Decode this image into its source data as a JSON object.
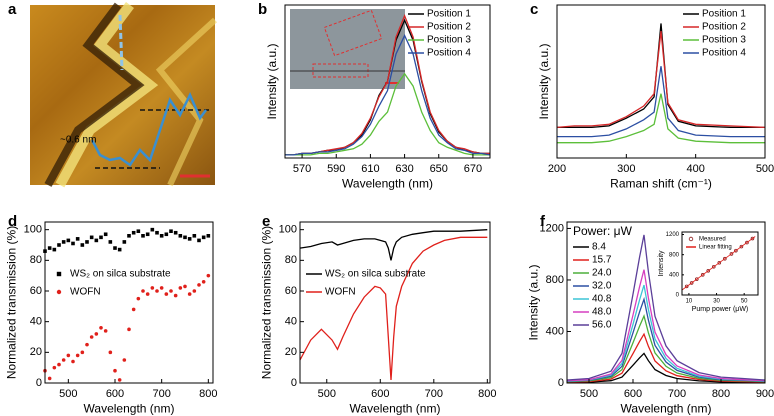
{
  "chart_data": [
    {
      "type": "image",
      "label": "a",
      "annotation": "~0.6 nm"
    },
    {
      "type": "line",
      "label": "b",
      "xlabel": "Wavelength (nm)",
      "ylabel": "Intensity (a.u.)",
      "xlim": [
        560,
        680
      ],
      "xticks": [
        570,
        590,
        610,
        630,
        650,
        670
      ],
      "ylim": [
        0,
        1
      ],
      "legend": "upper right",
      "x": [
        560,
        565,
        570,
        575,
        580,
        585,
        590,
        595,
        600,
        605,
        610,
        615,
        620,
        625,
        630,
        635,
        640,
        645,
        650,
        655,
        660,
        665,
        670,
        675,
        680
      ],
      "series": [
        {
          "name": "Position 1",
          "color": "#000000",
          "values": [
            0.02,
            0.02,
            0.03,
            0.03,
            0.04,
            0.05,
            0.05,
            0.07,
            0.1,
            0.15,
            0.25,
            0.41,
            0.5,
            0.77,
            0.9,
            0.77,
            0.5,
            0.29,
            0.17,
            0.11,
            0.07,
            0.05,
            0.04,
            0.03,
            0.03
          ]
        },
        {
          "name": "Position 2",
          "color": "#d62728",
          "values": [
            0.02,
            0.02,
            0.03,
            0.03,
            0.04,
            0.05,
            0.06,
            0.07,
            0.1,
            0.16,
            0.26,
            0.4,
            0.5,
            0.79,
            0.93,
            0.79,
            0.51,
            0.3,
            0.18,
            0.11,
            0.07,
            0.06,
            0.04,
            0.03,
            0.03
          ]
        },
        {
          "name": "Position 3",
          "color": "#5cbf3a",
          "values": [
            0.02,
            0.02,
            0.02,
            0.02,
            0.03,
            0.03,
            0.04,
            0.05,
            0.06,
            0.09,
            0.15,
            0.24,
            0.3,
            0.47,
            0.55,
            0.47,
            0.3,
            0.18,
            0.1,
            0.07,
            0.05,
            0.03,
            0.02,
            0.02,
            0.02
          ]
        },
        {
          "name": "Position 4",
          "color": "#2c4fa3",
          "values": [
            0.02,
            0.02,
            0.03,
            0.03,
            0.04,
            0.04,
            0.05,
            0.06,
            0.09,
            0.14,
            0.22,
            0.34,
            0.44,
            0.68,
            0.8,
            0.68,
            0.44,
            0.26,
            0.15,
            0.1,
            0.06,
            0.05,
            0.03,
            0.03,
            0.02
          ]
        }
      ]
    },
    {
      "type": "line",
      "label": "c",
      "xlabel": "Raman shift (cm⁻¹)",
      "ylabel": "Intensity (a.u.)",
      "xlim": [
        200,
        500
      ],
      "xticks": [
        200,
        300,
        400,
        500
      ],
      "ylim": [
        0,
        1
      ],
      "legend": "upper right",
      "x": [
        200,
        225,
        250,
        275,
        300,
        325,
        340,
        350,
        360,
        375,
        400,
        450,
        500
      ],
      "series": [
        {
          "name": "Position 1",
          "color": "#000000",
          "values": [
            0.2,
            0.2,
            0.2,
            0.21,
            0.26,
            0.32,
            0.4,
            0.88,
            0.35,
            0.24,
            0.21,
            0.2,
            0.2
          ]
        },
        {
          "name": "Position 2",
          "color": "#d62728",
          "values": [
            0.2,
            0.21,
            0.21,
            0.22,
            0.27,
            0.34,
            0.42,
            0.83,
            0.36,
            0.25,
            0.22,
            0.21,
            0.2
          ]
        },
        {
          "name": "Position 3",
          "color": "#5cbf3a",
          "values": [
            0.1,
            0.1,
            0.1,
            0.11,
            0.14,
            0.18,
            0.22,
            0.42,
            0.19,
            0.13,
            0.11,
            0.1,
            0.1
          ]
        },
        {
          "name": "Position 4",
          "color": "#2c4fa3",
          "values": [
            0.14,
            0.14,
            0.14,
            0.15,
            0.19,
            0.25,
            0.3,
            0.6,
            0.26,
            0.18,
            0.15,
            0.14,
            0.14
          ]
        }
      ]
    },
    {
      "type": "scatter",
      "label": "d",
      "xlabel": "Wavelength (nm)",
      "ylabel": "Normalized transmission (%)",
      "xlim": [
        450,
        810
      ],
      "xticks": [
        500,
        600,
        700,
        800
      ],
      "ylim": [
        0,
        105
      ],
      "yticks": [
        0,
        20,
        40,
        60,
        80,
        100
      ],
      "legend": "center left",
      "x": [
        450,
        460,
        470,
        480,
        490,
        500,
        510,
        520,
        530,
        540,
        550,
        560,
        570,
        580,
        590,
        600,
        610,
        620,
        630,
        640,
        650,
        660,
        670,
        680,
        690,
        700,
        710,
        720,
        730,
        740,
        750,
        760,
        770,
        780,
        790,
        800
      ],
      "series": [
        {
          "name": "WS₂ on silca substrate",
          "color": "#000000",
          "marker": "square",
          "values": [
            86,
            88,
            87,
            90,
            92,
            93,
            91,
            94,
            90,
            92,
            95,
            93,
            95,
            97,
            92,
            88,
            87,
            92,
            96,
            98,
            99,
            96,
            97,
            100,
            98,
            96,
            97,
            99,
            98,
            96,
            95,
            94,
            96,
            93,
            95,
            96
          ]
        },
        {
          "name": "WOFN",
          "color": "#e0201b",
          "marker": "circle",
          "values": [
            8,
            3,
            10,
            12,
            15,
            18,
            14,
            18,
            20,
            25,
            30,
            32,
            36,
            34,
            20,
            8,
            2,
            15,
            35,
            48,
            55,
            60,
            58,
            62,
            60,
            62,
            58,
            60,
            57,
            62,
            63,
            58,
            60,
            64,
            66,
            70
          ]
        }
      ]
    },
    {
      "type": "line",
      "label": "e",
      "xlabel": "Wavelength (nm)",
      "ylabel": "Normalized transmission (%)",
      "xlim": [
        450,
        805
      ],
      "xticks": [
        500,
        600,
        700,
        800
      ],
      "ylim": [
        0,
        105
      ],
      "yticks": [
        0,
        20,
        40,
        60,
        80,
        100
      ],
      "legend": "center left",
      "x": [
        450,
        470,
        490,
        510,
        520,
        530,
        550,
        570,
        590,
        600,
        610,
        615,
        620,
        625,
        630,
        640,
        660,
        680,
        700,
        720,
        750,
        800
      ],
      "series": [
        {
          "name": "WS₂ on silca substrate",
          "color": "#000000",
          "values": [
            88,
            89,
            91,
            92,
            90,
            91,
            93,
            94,
            94,
            93,
            92,
            88,
            80,
            88,
            92,
            95,
            97,
            98,
            99,
            99,
            99,
            100
          ]
        },
        {
          "name": "WOFN",
          "color": "#e0201b",
          "values": [
            15,
            28,
            35,
            28,
            22,
            30,
            45,
            56,
            63,
            62,
            58,
            30,
            2,
            30,
            50,
            63,
            78,
            86,
            90,
            93,
            95,
            95
          ]
        }
      ]
    },
    {
      "type": "line",
      "label": "f",
      "xlabel": "Wavelength (nm)",
      "ylabel": "Intensity (a.u.)",
      "xlim": [
        450,
        900
      ],
      "xticks": [
        500,
        600,
        700,
        800,
        900
      ],
      "ylim": [
        0,
        1250
      ],
      "yticks": [
        0,
        400,
        800,
        1200
      ],
      "legend": "upper left",
      "legend_title": "Power: μW",
      "x": [
        450,
        500,
        550,
        575,
        600,
        615,
        625,
        635,
        650,
        675,
        700,
        750,
        800,
        850,
        900
      ],
      "series": [
        {
          "name": "8.4",
          "color": "#000000",
          "values": [
            5,
            7,
            18,
            46,
            138,
            196,
            230,
            173,
            104,
            58,
            35,
            16,
            9,
            7,
            5
          ]
        },
        {
          "name": "15.7",
          "color": "#e0201b",
          "values": [
            8,
            11,
            30,
            76,
            228,
            323,
            380,
            285,
            171,
            95,
            57,
            27,
            15,
            11,
            8
          ]
        },
        {
          "name": "24.0",
          "color": "#4caf3a",
          "values": [
            10,
            16,
            42,
            104,
            312,
            442,
            520,
            390,
            234,
            130,
            78,
            36,
            21,
            16,
            10
          ]
        },
        {
          "name": "32.0",
          "color": "#2c4fa3",
          "values": [
            13,
            20,
            52,
            130,
            390,
            553,
            650,
            488,
            293,
            163,
            98,
            46,
            26,
            20,
            13
          ]
        },
        {
          "name": "40.8",
          "color": "#3cc4d6",
          "values": [
            15,
            23,
            61,
            152,
            456,
            646,
            760,
            570,
            342,
            190,
            114,
            53,
            30,
            23,
            15
          ]
        },
        {
          "name": "48.0",
          "color": "#d63fc0",
          "values": [
            18,
            26,
            70,
            176,
            528,
            748,
            880,
            660,
            396,
            220,
            132,
            62,
            35,
            26,
            18
          ]
        },
        {
          "name": "56.0",
          "color": "#5b3f99",
          "values": [
            23,
            35,
            92,
            230,
            690,
            978,
            1150,
            863,
            518,
            288,
            173,
            81,
            46,
            35,
            23
          ]
        }
      ]
    },
    {
      "type": "scatter",
      "xlabel": "Pump power (μW)",
      "ylabel": "Intensity",
      "xlim": [
        5,
        60
      ],
      "xticks": [
        10,
        30,
        50
      ],
      "ylim": [
        0,
        1250
      ],
      "yticks": [
        0,
        400,
        800,
        1200
      ],
      "legend": "upper left",
      "series": [
        {
          "name": "Measured",
          "color": "#8b1a1a",
          "marker": "open-circle",
          "x": [
            8.4,
            12,
            15.7,
            20,
            24,
            28,
            32,
            36,
            40.8,
            44,
            48,
            52,
            56
          ],
          "values": [
            170,
            240,
            315,
            400,
            480,
            560,
            640,
            720,
            815,
            880,
            960,
            1040,
            1120
          ]
        },
        {
          "name": "Linear fitting",
          "color": "#e0201b",
          "type": "line",
          "x": [
            5,
            58
          ],
          "values": [
            100,
            1160
          ]
        }
      ]
    }
  ]
}
